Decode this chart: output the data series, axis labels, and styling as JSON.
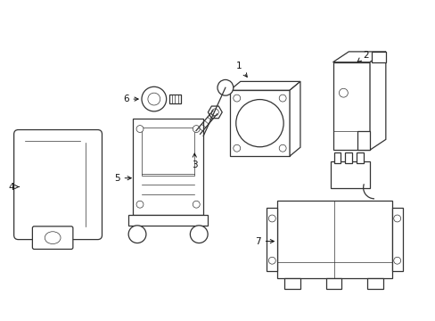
{
  "background_color": "#ffffff",
  "line_color": "#333333",
  "line_width": 0.9,
  "lw_thin": 0.5,
  "parts": [
    {
      "id": 1,
      "label": "1"
    },
    {
      "id": 2,
      "label": "2"
    },
    {
      "id": 3,
      "label": "3"
    },
    {
      "id": 4,
      "label": "4"
    },
    {
      "id": 5,
      "label": "5"
    },
    {
      "id": 6,
      "label": "6"
    },
    {
      "id": 7,
      "label": "7"
    }
  ]
}
